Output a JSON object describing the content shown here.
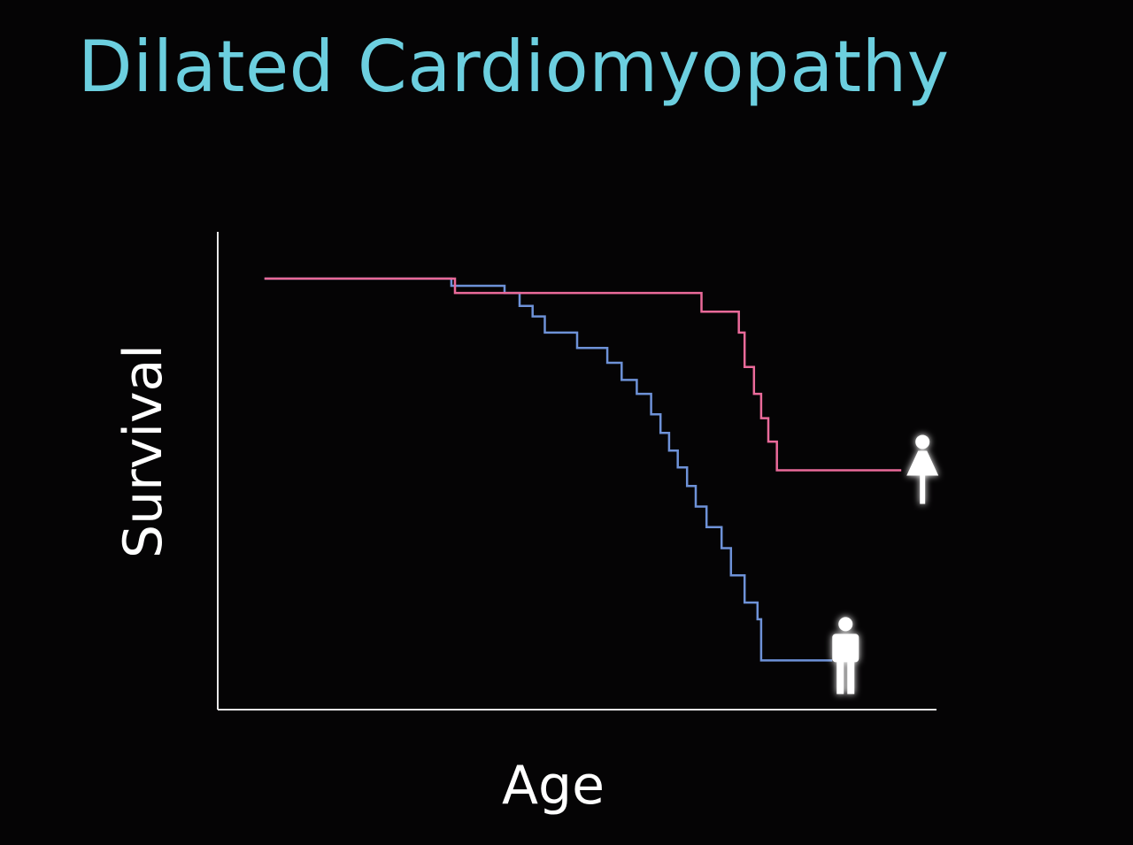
{
  "slide": {
    "title": "Dilated Cardiomyopathy"
  },
  "colors": {
    "background": "#050405",
    "title": "#6ccfdf",
    "axis": "#e8e8e8",
    "female_series": "#ea6a9a",
    "male_series": "#6e92d8",
    "figure_icon": "#ffffff"
  },
  "chart_data": {
    "type": "line",
    "step": "post",
    "title": "Dilated Cardiomyopathy",
    "xlabel": "Age",
    "ylabel": "Survival",
    "xlim": [
      0,
      100
    ],
    "ylim": [
      0,
      1
    ],
    "ticks": false,
    "grid": false,
    "legend": "icons at line ends (female figure on pink series, male figure on blue series)",
    "series": [
      {
        "key": "female",
        "icon": "female-figure-icon",
        "color": "#ea6a9a",
        "x": [
          6.5,
          32.2,
          33.0,
          65.3,
          67.3,
          72.5,
          73.3,
          74.6,
          75.6,
          76.6,
          77.8,
          95.1
        ],
        "y": [
          0.902,
          0.902,
          0.872,
          0.872,
          0.833,
          0.789,
          0.717,
          0.661,
          0.61,
          0.561,
          0.501,
          0.501
        ]
      },
      {
        "key": "male",
        "icon": "male-figure-icon",
        "color": "#6e92d8",
        "x": [
          6.5,
          31.7,
          32.5,
          39.9,
          42.0,
          43.8,
          45.5,
          50.0,
          54.2,
          56.2,
          58.3,
          60.3,
          61.6,
          62.8,
          64.0,
          65.3,
          66.5,
          68.0,
          70.1,
          71.4,
          73.3,
          75.1,
          75.6,
          85.5
        ],
        "y": [
          0.902,
          0.902,
          0.887,
          0.872,
          0.845,
          0.823,
          0.789,
          0.757,
          0.726,
          0.69,
          0.661,
          0.618,
          0.579,
          0.542,
          0.507,
          0.468,
          0.425,
          0.382,
          0.338,
          0.281,
          0.224,
          0.189,
          0.103,
          0.103
        ]
      }
    ]
  }
}
